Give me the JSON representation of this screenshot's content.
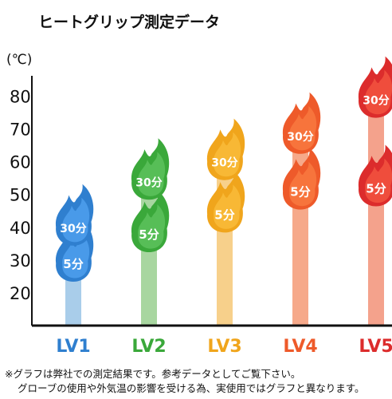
{
  "chart_data": {
    "type": "bar",
    "title": "ヒートグリップ測定データ",
    "unit_label": "(℃)",
    "ylim": [
      10,
      85
    ],
    "yticks": [
      20,
      30,
      40,
      50,
      60,
      70,
      80
    ],
    "grid": false,
    "categories": [
      "LV1",
      "LV2",
      "LV3",
      "LV4",
      "LV5"
    ],
    "series": [
      {
        "name": "5分",
        "values": [
          29,
          38,
          44,
          51,
          52
        ]
      },
      {
        "name": "30分",
        "values": [
          40,
          54,
          60,
          68,
          79
        ]
      }
    ],
    "level_colors": [
      "#2f7fcf",
      "#3aa83a",
      "#f0a51c",
      "#ee5a2a",
      "#dc2c2c"
    ],
    "bar_colors": [
      "#a9cdea",
      "#a8d6a0",
      "#f7d08b",
      "#f6a98a",
      "#f4a28c"
    ],
    "flame_highlight": [
      "#5fb0ff",
      "#6fd06f",
      "#ffc84a",
      "#ff8a4a",
      "#ff6a4a"
    ]
  },
  "notes": [
    "※グラフは弊社での測定結果です。参考データとしてご覧下さい。",
    "グローブの使用や外気温の影響を受ける為、実使用ではグラフと異なります。"
  ]
}
